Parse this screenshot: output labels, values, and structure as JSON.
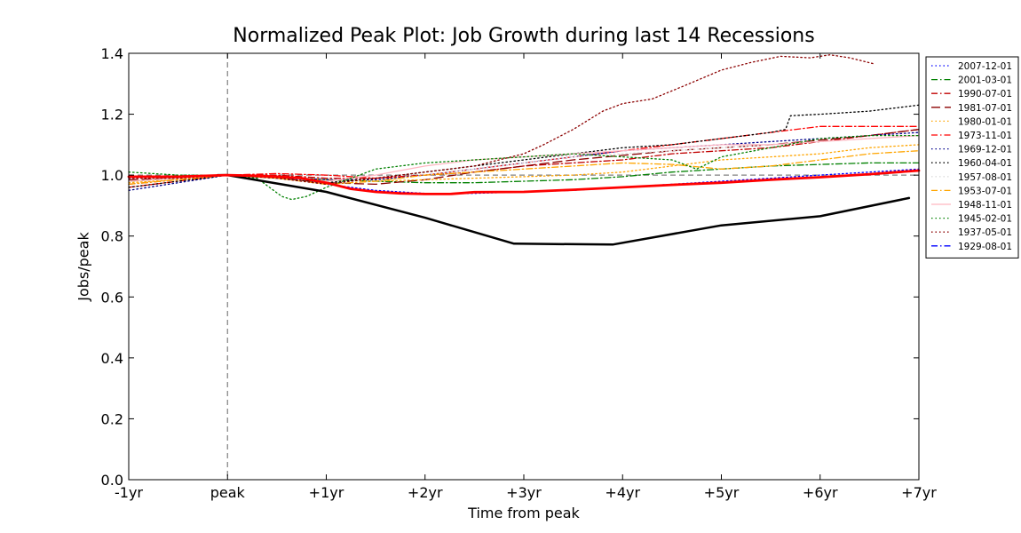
{
  "chart_data": {
    "type": "line",
    "title": "Normalized Peak Plot: Job Growth during last 14 Recessions",
    "xlabel": "Time from peak",
    "ylabel": "Jobs/peak",
    "xlim": [
      -1,
      7
    ],
    "ylim": [
      0.0,
      1.4
    ],
    "x_ticks": [
      {
        "value": -1,
        "label": "-1yr"
      },
      {
        "value": 0,
        "label": "peak"
      },
      {
        "value": 1,
        "label": "+1yr"
      },
      {
        "value": 2,
        "label": "+2yr"
      },
      {
        "value": 3,
        "label": "+3yr"
      },
      {
        "value": 4,
        "label": "+4yr"
      },
      {
        "value": 5,
        "label": "+5yr"
      },
      {
        "value": 6,
        "label": "+6yr"
      },
      {
        "value": 7,
        "label": "+7yr"
      }
    ],
    "y_ticks": [
      {
        "value": 0.0,
        "label": "0.0"
      },
      {
        "value": 0.2,
        "label": "0.2"
      },
      {
        "value": 0.4,
        "label": "0.4"
      },
      {
        "value": 0.6,
        "label": "0.6"
      },
      {
        "value": 0.8,
        "label": "0.8"
      },
      {
        "value": 1.0,
        "label": "1.0"
      },
      {
        "value": 1.2,
        "label": "1.2"
      },
      {
        "value": 1.4,
        "label": "1.4"
      }
    ],
    "grid": false,
    "legend_position": "outside-right-top",
    "reference_lines": [
      {
        "orientation": "vertical",
        "value": 0,
        "color": "#808080",
        "dash": "dashed"
      },
      {
        "orientation": "horizontal",
        "value": 1.0,
        "color": "#808080",
        "dash": "dashed"
      }
    ],
    "series": [
      {
        "name": "2007-12-01",
        "color": "#0000ff",
        "dash": "dotted",
        "legend": true,
        "x": [
          -1,
          -0.5,
          0,
          0.5,
          1,
          1.5,
          2,
          2.5,
          3,
          3.5,
          4,
          4.5,
          5,
          5.5,
          6,
          6.5,
          7
        ],
        "y": [
          0.99,
          0.995,
          1.0,
          0.995,
          0.97,
          0.95,
          0.94,
          0.94,
          0.945,
          0.95,
          0.96,
          0.97,
          0.98,
          0.99,
          1.0,
          1.01,
          1.02
        ]
      },
      {
        "name": "2001-03-01",
        "color": "#008000",
        "dash": "dashdot",
        "legend": true,
        "x": [
          -1,
          -0.5,
          0,
          0.5,
          1,
          1.5,
          2,
          2.5,
          3,
          3.5,
          4,
          4.5,
          5,
          5.5,
          6,
          6.5,
          7
        ],
        "y": [
          0.98,
          0.99,
          1.0,
          0.995,
          0.985,
          0.98,
          0.975,
          0.975,
          0.98,
          0.985,
          0.995,
          1.01,
          1.02,
          1.03,
          1.035,
          1.04,
          1.04
        ]
      },
      {
        "name": "1990-07-01",
        "color": "#c00000",
        "dash": "dashdot",
        "legend": true,
        "x": [
          -1,
          -0.5,
          0,
          0.5,
          1,
          1.5,
          2,
          2.5,
          3,
          3.5,
          4,
          4.5,
          5,
          5.5,
          6,
          6.5,
          7
        ],
        "y": [
          0.97,
          0.985,
          1.0,
          1.0,
          0.99,
          0.99,
          1.0,
          1.01,
          1.03,
          1.04,
          1.05,
          1.07,
          1.08,
          1.09,
          1.11,
          1.13,
          1.15
        ]
      },
      {
        "name": "1981-07-01",
        "color": "#8b0000",
        "dash": "longdash",
        "legend": true,
        "x": [
          -1,
          -0.5,
          0,
          0.5,
          1,
          1.5,
          2,
          2.5,
          3,
          3.5,
          4,
          4.5,
          5,
          5.5,
          6,
          6.5,
          7
        ],
        "y": [
          0.985,
          0.99,
          1.0,
          0.99,
          0.975,
          0.97,
          0.985,
          1.01,
          1.03,
          1.05,
          1.065,
          1.08,
          1.09,
          1.1,
          1.115,
          1.13,
          1.15
        ]
      },
      {
        "name": "1980-01-01",
        "color": "#ffa500",
        "dash": "dotted",
        "legend": true,
        "x": [
          -1,
          -0.5,
          0,
          0.5,
          1,
          1.5,
          2,
          2.5,
          3,
          3.5,
          4,
          4.5,
          5,
          5.5,
          6,
          6.5,
          7
        ],
        "y": [
          0.975,
          0.985,
          1.0,
          0.995,
          0.985,
          0.98,
          0.985,
          0.99,
          0.995,
          1.0,
          1.01,
          1.03,
          1.05,
          1.06,
          1.07,
          1.09,
          1.1
        ]
      },
      {
        "name": "1973-11-01",
        "color": "#ff0000",
        "dash": "dashdot",
        "legend": true,
        "x": [
          -1,
          -0.5,
          0,
          0.5,
          1,
          1.5,
          2,
          2.5,
          3,
          3.5,
          4,
          4.5,
          5,
          5.5,
          6,
          6.5,
          7
        ],
        "y": [
          0.96,
          0.98,
          1.0,
          1.005,
          1.0,
          0.99,
          1.0,
          1.02,
          1.04,
          1.06,
          1.08,
          1.1,
          1.12,
          1.14,
          1.16,
          1.16,
          1.16
        ]
      },
      {
        "name": "1969-12-01",
        "color": "#00008b",
        "dash": "dotted",
        "legend": true,
        "x": [
          -1,
          -0.5,
          0,
          0.5,
          1,
          1.5,
          2,
          2.5,
          3,
          3.5,
          4,
          4.5,
          5,
          5.5,
          6,
          6.5,
          7
        ],
        "y": [
          0.95,
          0.975,
          1.0,
          0.995,
          0.985,
          0.985,
          1.0,
          1.02,
          1.04,
          1.06,
          1.08,
          1.09,
          1.1,
          1.11,
          1.12,
          1.13,
          1.14
        ]
      },
      {
        "name": "1960-04-01",
        "color": "#000000",
        "dash": "dotted",
        "legend": true,
        "x": [
          -1,
          -0.5,
          0,
          0.5,
          1,
          1.5,
          2,
          2.5,
          3,
          3.5,
          4,
          4.5,
          5,
          5.5,
          5.65,
          5.7,
          6,
          6.5,
          7
        ],
        "y": [
          0.96,
          0.98,
          1.0,
          0.99,
          0.975,
          0.99,
          1.01,
          1.03,
          1.05,
          1.07,
          1.09,
          1.1,
          1.12,
          1.14,
          1.15,
          1.195,
          1.2,
          1.21,
          1.23
        ]
      },
      {
        "name": "1957-08-01",
        "color": "#dddddd",
        "dash": "dotted",
        "legend": true,
        "x": [
          -1,
          -0.5,
          0,
          0.5,
          1,
          1.5,
          2,
          2.5,
          3,
          3.5,
          4,
          4.5,
          5,
          5.5,
          6,
          6.5,
          7
        ],
        "y": [
          0.98,
          0.99,
          1.0,
          0.99,
          0.97,
          0.98,
          1.0,
          1.02,
          1.04,
          1.06,
          1.07,
          1.08,
          1.09,
          1.1,
          1.11,
          1.12,
          1.13
        ]
      },
      {
        "name": "1953-07-01",
        "color": "#ffa500",
        "dash": "dashdot",
        "legend": true,
        "x": [
          -1,
          -0.5,
          0,
          0.5,
          1,
          1.5,
          2,
          2.5,
          3,
          3.5,
          4,
          4.5,
          5,
          5.5,
          6,
          6.5,
          7
        ],
        "y": [
          0.97,
          0.985,
          1.0,
          0.99,
          0.97,
          0.98,
          1.0,
          1.01,
          1.02,
          1.03,
          1.04,
          1.035,
          1.02,
          1.03,
          1.05,
          1.07,
          1.08
        ]
      },
      {
        "name": "1948-11-01",
        "color": "#ffb6c1",
        "dash": "solid",
        "legend": true,
        "x": [
          -1,
          -0.5,
          0,
          0.5,
          1,
          1.5,
          2,
          2.5,
          3,
          3.5,
          4,
          4.5,
          5,
          5.5,
          6,
          6.5,
          7
        ],
        "y": [
          0.98,
          0.99,
          1.0,
          0.995,
          0.98,
          1.0,
          1.03,
          1.05,
          1.06,
          1.07,
          1.08,
          1.09,
          1.1,
          1.1,
          1.11,
          1.12,
          1.13
        ]
      },
      {
        "name": "1945-02-01",
        "color": "#008000",
        "dash": "dotted",
        "legend": true,
        "x": [
          -1,
          -0.5,
          0,
          0.3,
          0.55,
          0.65,
          0.8,
          1,
          1.5,
          2,
          2.5,
          3,
          3.5,
          4,
          4.5,
          4.75,
          5,
          5.5,
          6,
          6.5,
          7
        ],
        "y": [
          1.01,
          1.0,
          1.0,
          0.99,
          0.93,
          0.92,
          0.93,
          0.96,
          1.02,
          1.04,
          1.05,
          1.06,
          1.07,
          1.06,
          1.05,
          1.02,
          1.06,
          1.09,
          1.12,
          1.13,
          1.13
        ]
      },
      {
        "name": "1937-05-01",
        "color": "#8b0000",
        "dash": "dotted",
        "legend": true,
        "x": [
          -1,
          -0.5,
          0,
          0.5,
          1,
          1.5,
          2,
          2.5,
          3,
          3.2,
          3.5,
          3.8,
          4,
          4.3,
          4.6,
          5,
          5.3,
          5.6,
          5.9,
          6.1,
          6.3,
          6.55
        ],
        "y": [
          0.99,
          0.99,
          1.0,
          0.99,
          0.97,
          0.99,
          1.01,
          1.03,
          1.07,
          1.1,
          1.15,
          1.21,
          1.235,
          1.25,
          1.29,
          1.345,
          1.37,
          1.39,
          1.385,
          1.395,
          1.385,
          1.365
        ]
      },
      {
        "name": "1929-08-01",
        "color": "#0000ff",
        "dash": "dashdot",
        "legend": true,
        "x": [
          0,
          1,
          2,
          2.9,
          3.9,
          5,
          6,
          6.9
        ],
        "y": [
          1.0,
          0.945,
          0.86,
          0.775,
          0.772,
          0.835,
          0.865,
          0.925
        ]
      },
      {
        "name": "",
        "color": "#000000",
        "dash": "solid",
        "width": 2.5,
        "legend": false,
        "x": [
          -0.1,
          0,
          1,
          2,
          2.9,
          3.9,
          5,
          6,
          6.9
        ],
        "y": [
          1.0,
          1.0,
          0.945,
          0.86,
          0.775,
          0.772,
          0.835,
          0.865,
          0.925
        ]
      },
      {
        "name": "",
        "color": "#ff0000",
        "dash": "solid",
        "width": 2.8,
        "legend": false,
        "x": [
          -1,
          -0.5,
          0,
          0.25,
          0.5,
          0.75,
          1,
          1.25,
          1.5,
          1.75,
          2,
          2.25,
          2.5,
          3,
          3.5,
          4,
          4.5,
          5,
          5.5,
          6,
          6.5,
          7
        ],
        "y": [
          0.995,
          0.995,
          1.0,
          0.998,
          0.995,
          0.99,
          0.975,
          0.955,
          0.945,
          0.94,
          0.938,
          0.938,
          0.944,
          0.945,
          0.952,
          0.96,
          0.968,
          0.975,
          0.985,
          0.993,
          1.003,
          1.015
        ]
      }
    ]
  }
}
